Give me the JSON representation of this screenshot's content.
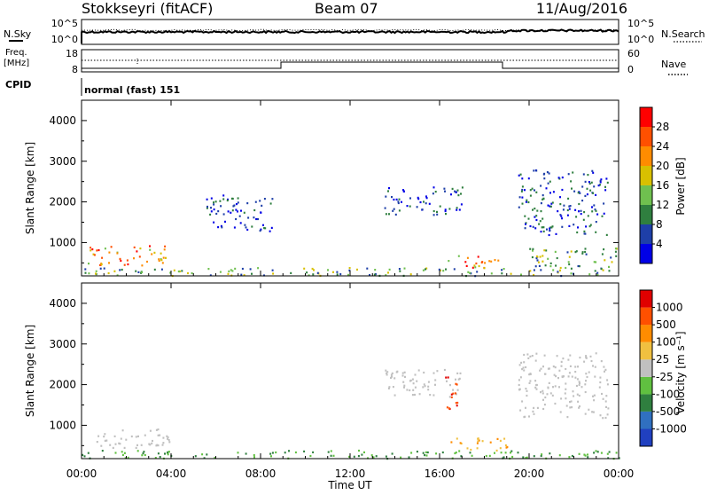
{
  "header": {
    "station": "Stokkseyri (fitACF)",
    "beam": "Beam 07",
    "date": "11/Aug/2016"
  },
  "strip_panels": {
    "nsky": {
      "left_label": "N.Sky",
      "right_label": "N.Search",
      "left_ticks": [
        "10^5",
        "10^0"
      ],
      "right_ticks": [
        "10^5",
        "10^0"
      ]
    },
    "freq": {
      "left_label_1": "Freq.",
      "left_label_2": "[MHz]",
      "left_ticks": [
        "18",
        "8"
      ],
      "right_label": "Nave",
      "right_ticks": [
        "60",
        "0"
      ]
    },
    "cpid": {
      "label": "CPID",
      "mode_text": "normal (fast) 151"
    }
  },
  "chart_data": [
    {
      "type": "heatmap",
      "name": "power",
      "ylabel": "Slant Range [km]",
      "xlabel": "",
      "ylim": [
        180,
        4500
      ],
      "yticks": [
        "1000",
        "2000",
        "3000",
        "4000"
      ],
      "colorbar": {
        "label": "Power [dB]",
        "ticks": [
          "4",
          "8",
          "12",
          "16",
          "20",
          "24",
          "28"
        ],
        "colors": [
          "#0000e6",
          "#1e3fa8",
          "#2f7f3f",
          "#6fc04f",
          "#d8c000",
          "#ff8c00",
          "#ff5000",
          "#ff0000"
        ]
      },
      "features": [
        {
          "t": [
            0.0,
            24.0
          ],
          "r": [
            200,
            400
          ],
          "level": "medium"
        },
        {
          "t": [
            0.2,
            3.8
          ],
          "r": [
            450,
            950
          ],
          "level": "high"
        },
        {
          "t": [
            16.3,
            18.8
          ],
          "r": [
            380,
            700
          ],
          "level": "high"
        },
        {
          "t": [
            20.0,
            24.0
          ],
          "r": [
            400,
            900
          ],
          "level": "medium"
        },
        {
          "t": [
            13.5,
            17.0
          ],
          "r": [
            1700,
            2400
          ],
          "level": "low"
        },
        {
          "t": [
            19.5,
            23.5
          ],
          "r": [
            1200,
            2800
          ],
          "level": "low"
        },
        {
          "t": [
            5.5,
            8.5
          ],
          "r": [
            1300,
            2200
          ],
          "level": "low"
        }
      ]
    },
    {
      "type": "heatmap",
      "name": "velocity",
      "ylabel": "Slant Range [km]",
      "xlabel": "Time UT",
      "ylim": [
        180,
        4500
      ],
      "yticks": [
        "1000",
        "2000",
        "3000",
        "4000"
      ],
      "xticks": [
        "00:00",
        "04:00",
        "08:00",
        "12:00",
        "16:00",
        "20:00",
        "00:00"
      ],
      "colorbar": {
        "label": "Velocity [m s⁻¹]",
        "ticks": [
          "1000",
          "500",
          "100",
          "25",
          "-25",
          "-100",
          "-500",
          "-1000"
        ],
        "colors": [
          "#2040c0",
          "#3070c0",
          "#2f7f3f",
          "#60c040",
          "#c0c0c0",
          "#f0c040",
          "#ff8c00",
          "#ff5000",
          "#e00000"
        ]
      },
      "features": [
        {
          "t": [
            0.0,
            24.0
          ],
          "r": [
            200,
            400
          ],
          "level": "green"
        },
        {
          "t": [
            16.3,
            19.0
          ],
          "r": [
            380,
            700
          ],
          "level": "orange"
        },
        {
          "t": [
            13.5,
            17.0
          ],
          "r": [
            1700,
            2400
          ],
          "level": "grey"
        },
        {
          "t": [
            19.5,
            23.5
          ],
          "r": [
            1200,
            2800
          ],
          "level": "grey"
        },
        {
          "t": [
            0.5,
            4.0
          ],
          "r": [
            450,
            950
          ],
          "level": "grey"
        },
        {
          "t": [
            16.2,
            16.8
          ],
          "r": [
            1400,
            2300
          ],
          "level": "red"
        }
      ]
    }
  ]
}
